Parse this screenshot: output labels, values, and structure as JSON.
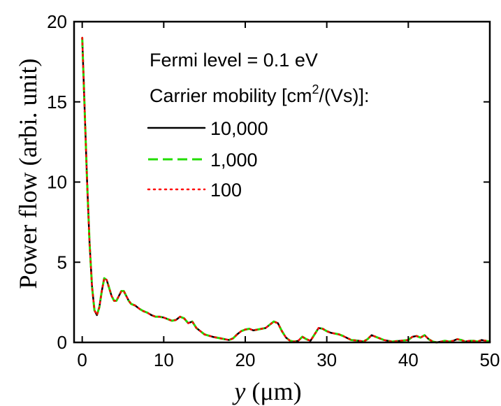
{
  "chart_data": {
    "type": "line",
    "xlabel_var": "y",
    "xlabel_unit": " (μm)",
    "ylabel": "Power flow (arbi. unit)",
    "xlim": [
      -1,
      50
    ],
    "ylim": [
      0,
      20
    ],
    "xticks": [
      0,
      10,
      20,
      30,
      40,
      50
    ],
    "yticks": [
      0,
      5,
      10,
      15,
      20
    ],
    "grid": false,
    "legend_position": "top-right",
    "annotations": {
      "fermi": "Fermi level = 0.1 eV",
      "mobility_prefix": "Carrier mobility [cm",
      "mobility_sup": "2",
      "mobility_suffix": "/(Vs)]:"
    },
    "x": [
      0,
      0.3,
      0.6,
      0.9,
      1.2,
      1.5,
      1.8,
      2.1,
      2.4,
      2.7,
      3.0,
      3.3,
      3.6,
      3.9,
      4.2,
      4.5,
      4.8,
      5.1,
      5.4,
      5.7,
      6.0,
      6.5,
      7.0,
      7.5,
      8.0,
      8.5,
      9.0,
      9.5,
      10.0,
      10.5,
      11.0,
      11.5,
      12.0,
      12.5,
      13.0,
      13.5,
      14.0,
      15.0,
      16.0,
      17.0,
      18.0,
      18.5,
      19.0,
      19.5,
      20.0,
      20.5,
      21.0,
      21.5,
      22.0,
      22.5,
      23.0,
      23.5,
      24.0,
      24.5,
      25.0,
      25.5,
      26.0,
      26.5,
      27.0,
      27.5,
      28.0,
      28.5,
      29.0,
      29.5,
      30.0,
      30.5,
      31.0,
      31.5,
      32.0,
      33.0,
      34.0,
      34.5,
      35.0,
      35.5,
      36.0,
      36.5,
      37.0,
      38.0,
      39.0,
      40.0,
      40.5,
      41.0,
      41.5,
      42.0,
      42.5,
      43.0,
      43.5,
      44.0,
      44.5,
      45.0,
      45.5,
      46.0,
      46.5,
      47.0,
      47.5,
      48.0,
      48.5,
      49.0,
      49.5,
      50.0
    ],
    "series": [
      {
        "name": "10,000",
        "color": "#000000",
        "style": "solid",
        "values": [
          19.0,
          14.5,
          10.0,
          6.2,
          3.5,
          2.0,
          1.7,
          2.2,
          3.2,
          4.0,
          3.9,
          3.4,
          2.9,
          2.6,
          2.6,
          2.9,
          3.2,
          3.2,
          2.9,
          2.6,
          2.4,
          2.3,
          2.1,
          1.95,
          1.85,
          1.7,
          1.6,
          1.6,
          1.55,
          1.45,
          1.35,
          1.4,
          1.6,
          1.5,
          1.2,
          1.3,
          0.9,
          0.5,
          0.35,
          0.25,
          0.15,
          0.25,
          0.5,
          0.7,
          0.8,
          0.85,
          0.75,
          0.8,
          0.85,
          0.9,
          1.1,
          1.3,
          1.2,
          0.7,
          0.3,
          0.1,
          0.05,
          0.1,
          0.35,
          0.2,
          0.1,
          0.5,
          0.9,
          0.85,
          0.7,
          0.6,
          0.55,
          0.5,
          0.4,
          0.15,
          0.1,
          0.05,
          0.2,
          0.45,
          0.35,
          0.25,
          0.15,
          0.05,
          0.1,
          0.15,
          0.35,
          0.4,
          0.3,
          0.45,
          0.2,
          0.05,
          0.0,
          0.05,
          0.1,
          0.05,
          0.1,
          0.2,
          0.15,
          0.05,
          0.1,
          0.1,
          0.05,
          0.15,
          0.1,
          0.05
        ]
      },
      {
        "name": "1,000",
        "color": "#22dd00",
        "style": "dashed",
        "values": [
          19.0,
          14.5,
          10.0,
          6.2,
          3.5,
          2.0,
          1.7,
          2.2,
          3.2,
          4.0,
          3.9,
          3.4,
          2.9,
          2.6,
          2.6,
          2.9,
          3.2,
          3.2,
          2.9,
          2.6,
          2.4,
          2.3,
          2.1,
          1.95,
          1.85,
          1.7,
          1.6,
          1.6,
          1.55,
          1.45,
          1.35,
          1.4,
          1.6,
          1.5,
          1.2,
          1.3,
          0.9,
          0.5,
          0.35,
          0.25,
          0.15,
          0.25,
          0.5,
          0.7,
          0.8,
          0.85,
          0.75,
          0.8,
          0.85,
          0.9,
          1.1,
          1.3,
          1.2,
          0.7,
          0.3,
          0.1,
          0.05,
          0.1,
          0.35,
          0.2,
          0.1,
          0.5,
          0.9,
          0.85,
          0.7,
          0.6,
          0.55,
          0.5,
          0.4,
          0.15,
          0.1,
          0.05,
          0.2,
          0.45,
          0.35,
          0.25,
          0.15,
          0.05,
          0.1,
          0.15,
          0.35,
          0.4,
          0.3,
          0.45,
          0.2,
          0.05,
          0.0,
          0.05,
          0.1,
          0.05,
          0.1,
          0.2,
          0.15,
          0.05,
          0.1,
          0.1,
          0.05,
          0.15,
          0.1,
          0.05
        ]
      },
      {
        "name": "100",
        "color": "#ff0000",
        "style": "dotted",
        "values": [
          19.0,
          14.5,
          10.0,
          6.2,
          3.5,
          2.0,
          1.7,
          2.2,
          3.2,
          4.0,
          3.9,
          3.4,
          2.9,
          2.6,
          2.6,
          2.9,
          3.2,
          3.2,
          2.9,
          2.6,
          2.4,
          2.3,
          2.1,
          1.95,
          1.85,
          1.7,
          1.6,
          1.6,
          1.55,
          1.45,
          1.35,
          1.4,
          1.6,
          1.5,
          1.2,
          1.3,
          0.9,
          0.5,
          0.35,
          0.25,
          0.15,
          0.25,
          0.5,
          0.7,
          0.8,
          0.85,
          0.75,
          0.8,
          0.85,
          0.9,
          1.1,
          1.3,
          1.2,
          0.7,
          0.3,
          0.1,
          0.05,
          0.1,
          0.35,
          0.2,
          0.1,
          0.5,
          0.9,
          0.85,
          0.7,
          0.6,
          0.55,
          0.5,
          0.4,
          0.15,
          0.1,
          0.05,
          0.2,
          0.45,
          0.35,
          0.25,
          0.15,
          0.05,
          0.1,
          0.15,
          0.35,
          0.4,
          0.3,
          0.45,
          0.2,
          0.05,
          0.0,
          0.05,
          0.1,
          0.05,
          0.1,
          0.2,
          0.15,
          0.05,
          0.1,
          0.1,
          0.05,
          0.15,
          0.1,
          0.05
        ]
      }
    ]
  }
}
